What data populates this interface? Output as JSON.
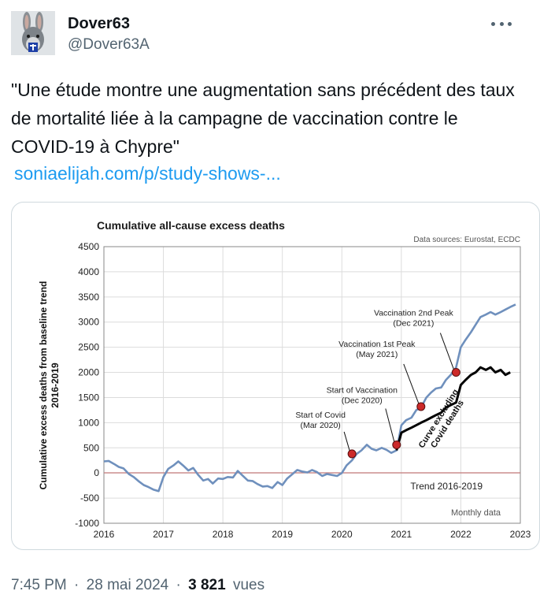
{
  "author": {
    "display_name": "Dover63",
    "handle": "@Dover63A"
  },
  "tweet": {
    "text": "\"Une étude montre une augmentation sans précédent des taux de mortalité liée à la campagne de vaccination contre le COVID-19 à Chypre\"",
    "link_text": "soniaelijah.com/p/study-shows-..."
  },
  "meta": {
    "time": "7:45 PM",
    "sep1": "·",
    "date": "28 mai 2024",
    "sep2": "·",
    "views_count": "3 821",
    "views_label": "vues"
  },
  "chart_data": {
    "type": "line",
    "title": "Cumulative all-cause excess deaths",
    "source": "Data sources: Eurostat, ECDC",
    "ylabel": "Cumulative excess deaths from baseline trend 2016-2019",
    "ylabel_line1": "Cumulative excess deaths from baseline trend",
    "ylabel_line2": "2016-2019",
    "xlim": [
      2016,
      2023
    ],
    "ylim": [
      -1000,
      4500
    ],
    "x_ticks": [
      "2016",
      "2017",
      "2018",
      "2019",
      "2020",
      "2021",
      "2022",
      "2023"
    ],
    "y_ticks": [
      "-1000",
      "-500",
      "0",
      "500",
      "1000",
      "1500",
      "2000",
      "2500",
      "3000",
      "3500",
      "4000",
      "4500"
    ],
    "grid": true,
    "trend_label": "Trend 2016-2019",
    "footnote": "Monthly data",
    "curve_label_line1": "Curve excluding",
    "curve_label_line2": "Covid deaths",
    "series": [
      {
        "color": "#6f90bd",
        "points": [
          [
            2016.0,
            230
          ],
          [
            2016.08,
            240
          ],
          [
            2016.17,
            180
          ],
          [
            2016.25,
            120
          ],
          [
            2016.33,
            90
          ],
          [
            2016.42,
            -20
          ],
          [
            2016.5,
            -80
          ],
          [
            2016.58,
            -160
          ],
          [
            2016.67,
            -240
          ],
          [
            2016.75,
            -280
          ],
          [
            2016.83,
            -330
          ],
          [
            2016.92,
            -360
          ],
          [
            2017.0,
            -80
          ],
          [
            2017.08,
            80
          ],
          [
            2017.17,
            150
          ],
          [
            2017.25,
            230
          ],
          [
            2017.33,
            150
          ],
          [
            2017.42,
            50
          ],
          [
            2017.5,
            100
          ],
          [
            2017.58,
            -30
          ],
          [
            2017.67,
            -150
          ],
          [
            2017.75,
            -120
          ],
          [
            2017.83,
            -210
          ],
          [
            2017.92,
            -110
          ],
          [
            2018.0,
            -120
          ],
          [
            2018.08,
            -80
          ],
          [
            2018.17,
            -90
          ],
          [
            2018.25,
            40
          ],
          [
            2018.33,
            -50
          ],
          [
            2018.42,
            -150
          ],
          [
            2018.5,
            -160
          ],
          [
            2018.58,
            -220
          ],
          [
            2018.67,
            -270
          ],
          [
            2018.75,
            -260
          ],
          [
            2018.83,
            -300
          ],
          [
            2018.92,
            -180
          ],
          [
            2019.0,
            -240
          ],
          [
            2019.08,
            -110
          ],
          [
            2019.17,
            -20
          ],
          [
            2019.25,
            60
          ],
          [
            2019.33,
            30
          ],
          [
            2019.42,
            10
          ],
          [
            2019.5,
            60
          ],
          [
            2019.58,
            20
          ],
          [
            2019.67,
            -60
          ],
          [
            2019.75,
            -20
          ],
          [
            2019.83,
            -40
          ],
          [
            2019.92,
            -60
          ],
          [
            2020.0,
            0
          ],
          [
            2020.08,
            150
          ],
          [
            2020.17,
            250
          ],
          [
            2020.25,
            380
          ],
          [
            2020.33,
            450
          ],
          [
            2020.42,
            560
          ],
          [
            2020.5,
            480
          ],
          [
            2020.58,
            450
          ],
          [
            2020.67,
            500
          ],
          [
            2020.75,
            460
          ],
          [
            2020.83,
            400
          ],
          [
            2020.92,
            450
          ],
          [
            2021.0,
            950
          ],
          [
            2021.08,
            1050
          ],
          [
            2021.17,
            1100
          ],
          [
            2021.25,
            1250
          ],
          [
            2021.33,
            1300
          ],
          [
            2021.42,
            1500
          ],
          [
            2021.5,
            1600
          ],
          [
            2021.58,
            1680
          ],
          [
            2021.67,
            1700
          ],
          [
            2021.75,
            1850
          ],
          [
            2021.83,
            1950
          ],
          [
            2021.92,
            2100
          ],
          [
            2022.0,
            2500
          ],
          [
            2022.08,
            2650
          ],
          [
            2022.17,
            2800
          ],
          [
            2022.25,
            2950
          ],
          [
            2022.33,
            3100
          ],
          [
            2022.42,
            3150
          ],
          [
            2022.5,
            3200
          ],
          [
            2022.58,
            3150
          ],
          [
            2022.67,
            3200
          ],
          [
            2022.75,
            3250
          ],
          [
            2022.83,
            3300
          ],
          [
            2022.92,
            3350
          ]
        ]
      },
      {
        "name": "Curve excluding Covid deaths",
        "color": "#000000",
        "points": [
          [
            2020.92,
            450
          ],
          [
            2021.0,
            800
          ],
          [
            2021.08,
            850
          ],
          [
            2021.17,
            900
          ],
          [
            2021.25,
            950
          ],
          [
            2021.33,
            1000
          ],
          [
            2021.42,
            1050
          ],
          [
            2021.5,
            1100
          ],
          [
            2021.58,
            1150
          ],
          [
            2021.67,
            1200
          ],
          [
            2021.75,
            1300
          ],
          [
            2021.83,
            1350
          ],
          [
            2021.92,
            1400
          ],
          [
            2022.0,
            1750
          ],
          [
            2022.08,
            1850
          ],
          [
            2022.17,
            1950
          ],
          [
            2022.25,
            2000
          ],
          [
            2022.33,
            2100
          ],
          [
            2022.42,
            2050
          ],
          [
            2022.5,
            2100
          ],
          [
            2022.58,
            2000
          ],
          [
            2022.67,
            2050
          ],
          [
            2022.75,
            1950
          ],
          [
            2022.83,
            2000
          ]
        ]
      }
    ],
    "annotations": [
      {
        "label": "Start of Covid",
        "date": "(Mar 2020)",
        "x": 2020.17,
        "y": 380
      },
      {
        "label": "Start of Vaccination",
        "date": "(Dec 2020)",
        "x": 2020.92,
        "y": 560
      },
      {
        "label": "Vaccination 1st Peak",
        "date": "(May 2021)",
        "x": 2021.33,
        "y": 1320
      },
      {
        "label": "Vaccination 2nd Peak",
        "date": "(Dec 2021)",
        "x": 2021.92,
        "y": 2000
      }
    ]
  }
}
